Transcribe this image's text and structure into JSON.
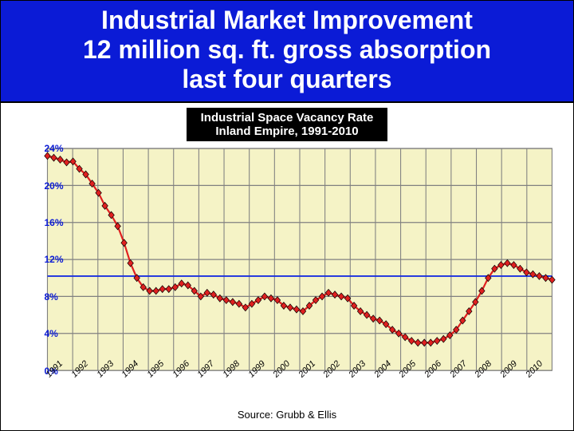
{
  "slide": {
    "title_line1": "Industrial Market Improvement",
    "title_line2": "12 million sq. ft. gross absorption",
    "title_line3": "last four quarters",
    "title_band_bg": "#0b1bd6",
    "title_color": "#ffffff",
    "title_fontsize": 32,
    "title_fontweight": "bold"
  },
  "chart": {
    "type": "line",
    "title_line1": "Industrial Space Vacancy Rate",
    "title_line2": "Inland Empire, 1991-2010",
    "title_box_bg": "#000000",
    "title_box_color": "#ffffff",
    "title_fontsize": 15,
    "plot_bg": "#f5f3c6",
    "plot_border_color": "#808080",
    "grid_color": "#808080",
    "grid_stroke": 1,
    "hline_value": 10.2,
    "hline_color": "#1a2fe0",
    "hline_stroke": 1.5,
    "ylim": [
      0,
      24
    ],
    "ytick_step": 4,
    "yticks": [
      0,
      4,
      8,
      12,
      16,
      20,
      24
    ],
    "ytick_labels": [
      "0%",
      "4%",
      "8%",
      "12%",
      "16%",
      "20%",
      "24%"
    ],
    "ytick_color": "#0b1bd6",
    "ytick_fontsize": 12,
    "x_years": [
      1991,
      1992,
      1993,
      1994,
      1995,
      1996,
      1997,
      1998,
      1999,
      2000,
      2001,
      2002,
      2003,
      2004,
      2005,
      2006,
      2007,
      2008,
      2009,
      2010
    ],
    "x_major_count": 20,
    "points_per_year": 4,
    "series": {
      "color": "#e02020",
      "line_width": 2,
      "marker": "diamond",
      "marker_size": 7,
      "marker_fill": "#e02020",
      "marker_stroke": "#000000",
      "marker_stroke_width": 0.6,
      "values": [
        23.2,
        23.0,
        22.8,
        22.5,
        22.6,
        21.8,
        21.2,
        20.2,
        19.2,
        17.8,
        16.8,
        15.6,
        13.8,
        11.6,
        10.0,
        9.0,
        8.6,
        8.6,
        8.8,
        8.8,
        9.0,
        9.4,
        9.2,
        8.6,
        8.0,
        8.4,
        8.2,
        7.8,
        7.6,
        7.4,
        7.2,
        6.8,
        7.2,
        7.6,
        8.0,
        7.8,
        7.6,
        7.0,
        6.8,
        6.6,
        6.4,
        7.0,
        7.6,
        8.0,
        8.4,
        8.2,
        8.0,
        7.8,
        7.0,
        6.4,
        6.0,
        5.6,
        5.4,
        5.0,
        4.4,
        4.0,
        3.6,
        3.2,
        3.0,
        3.0,
        3.0,
        3.2,
        3.4,
        3.8,
        4.4,
        5.4,
        6.4,
        7.4,
        8.6,
        10.0,
        11.0,
        11.4,
        11.6,
        11.4,
        11.0,
        10.6,
        10.4,
        10.2,
        10.0,
        9.8
      ]
    },
    "source_label": "Source: Grubb & Ellis",
    "source_fontsize": 13
  }
}
